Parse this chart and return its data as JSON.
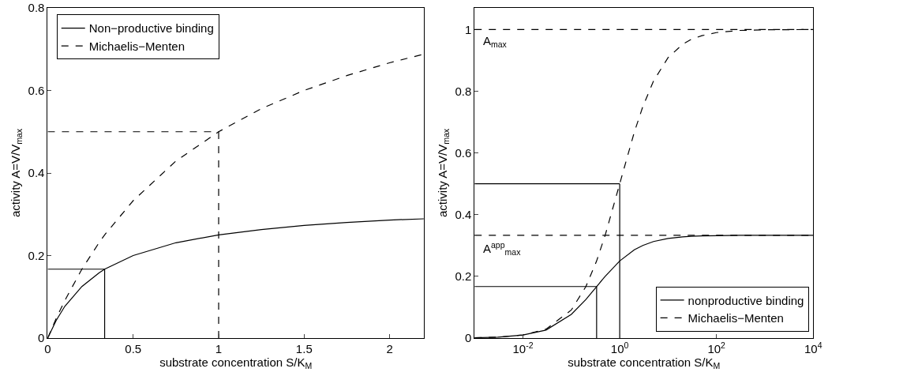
{
  "chart_data": [
    {
      "type": "line",
      "xlabel": "substrate concentration S/K$_{M}$",
      "ylabel": "activity A=V/V$_{max}$",
      "xlim": [
        0,
        2.2
      ],
      "ylim": [
        0,
        0.8
      ],
      "xticks": [
        0,
        0.5,
        1,
        1.5,
        2
      ],
      "yticks": [
        0,
        0.2,
        0.4,
        0.6,
        0.8
      ],
      "legend": "top left",
      "marker": "none",
      "series": [
        {
          "name": "Non−productive binding",
          "color": "#000000",
          "line_style": "solid",
          "x": [
            0,
            0.05,
            0.1,
            0.2,
            0.3,
            0.333,
            0.5,
            0.75,
            1,
            1.25,
            1.5,
            1.75,
            2,
            2.2
          ],
          "values": [
            0,
            0.043,
            0.077,
            0.125,
            0.158,
            0.167,
            0.2,
            0.231,
            0.25,
            0.263,
            0.273,
            0.28,
            0.286,
            0.289
          ]
        },
        {
          "name": "Michaelis−Menten",
          "color": "#000000",
          "line_style": "dashed",
          "x": [
            0,
            0.05,
            0.1,
            0.2,
            0.3,
            0.333,
            0.5,
            0.75,
            1,
            1.25,
            1.5,
            1.75,
            2,
            2.2
          ],
          "values": [
            0,
            0.048,
            0.091,
            0.167,
            0.231,
            0.25,
            0.333,
            0.429,
            0.5,
            0.556,
            0.6,
            0.636,
            0.667,
            0.688
          ]
        },
        {
          "color": "#000000",
          "line_style": "dashed",
          "x": [
            0,
            1
          ],
          "values": [
            0.5,
            0.5
          ]
        },
        {
          "color": "#000000",
          "line_style": "dashed",
          "x": [
            1,
            1
          ],
          "values": [
            0,
            0.5
          ]
        },
        {
          "color": "#000000",
          "line_style": "solid",
          "x": [
            0,
            0.333
          ],
          "values": [
            0.167,
            0.167
          ]
        },
        {
          "color": "#000000",
          "line_style": "solid",
          "x": [
            0.333,
            0.333
          ],
          "values": [
            0,
            0.167
          ]
        }
      ]
    },
    {
      "type": "line",
      "xlabel": "substrate concentration S/K$_{M}$",
      "ylabel": "activity A=V/V$_{max}$",
      "log": "x",
      "xlim": [
        0.001,
        10000
      ],
      "ylim": [
        0,
        1.07
      ],
      "xticks": [
        {
          "value": 0.01,
          "label": "10$^{-2}$"
        },
        {
          "value": 1,
          "label": "10$^{0}$"
        },
        {
          "value": 100,
          "label": "10$^{2}$"
        },
        {
          "value": 10000,
          "label": "10$^{4}$"
        }
      ],
      "yticks": [
        0,
        0.2,
        0.4,
        0.6,
        0.8,
        1
      ],
      "legend": "bottom right",
      "marker": "none",
      "ref_lines": [
        {
          "axis": "y",
          "value": 1,
          "label": "A$_{max}$",
          "line_style": "dashed",
          "color": "#000000"
        },
        {
          "axis": "y",
          "value": 0.333,
          "label": "A$^{app}$$_{max}$",
          "line_style": "dashed",
          "color": "#000000"
        }
      ],
      "series": [
        {
          "name": "nonproductive binding",
          "color": "#000000",
          "line_style": "solid",
          "x": [
            0.001,
            0.003,
            0.01,
            0.03,
            0.1,
            0.2,
            0.333,
            0.5,
            1,
            2,
            3,
            5,
            10,
            20,
            30,
            50,
            100,
            300,
            1000,
            10000
          ],
          "values": [
            0.001,
            0.003,
            0.01,
            0.026,
            0.077,
            0.125,
            0.167,
            0.2,
            0.25,
            0.286,
            0.3,
            0.313,
            0.323,
            0.328,
            0.33,
            0.331,
            0.332,
            0.333,
            0.333,
            0.333
          ]
        },
        {
          "name": "Michaelis−Menten",
          "color": "#000000",
          "line_style": "dashed",
          "x": [
            0.001,
            0.003,
            0.01,
            0.03,
            0.1,
            0.2,
            0.333,
            0.5,
            1,
            2,
            3,
            5,
            10,
            20,
            30,
            50,
            100,
            300,
            1000,
            10000
          ],
          "values": [
            0.001,
            0.003,
            0.01,
            0.029,
            0.091,
            0.167,
            0.25,
            0.333,
            0.5,
            0.667,
            0.75,
            0.833,
            0.909,
            0.952,
            0.968,
            0.98,
            0.99,
            0.997,
            0.999,
            1.0
          ]
        },
        {
          "color": "#000000",
          "line_style": "solid",
          "x": [
            0.001,
            1
          ],
          "values": [
            0.5,
            0.5
          ]
        },
        {
          "color": "#000000",
          "line_style": "solid",
          "x": [
            1,
            1
          ],
          "values": [
            0,
            0.5
          ]
        },
        {
          "color": "#000000",
          "line_style": "solid",
          "x": [
            0.001,
            0.333
          ],
          "values": [
            0.167,
            0.167
          ]
        },
        {
          "color": "#000000",
          "line_style": "solid",
          "x": [
            0.333,
            0.333
          ],
          "values": [
            0,
            0.167
          ]
        }
      ]
    }
  ]
}
